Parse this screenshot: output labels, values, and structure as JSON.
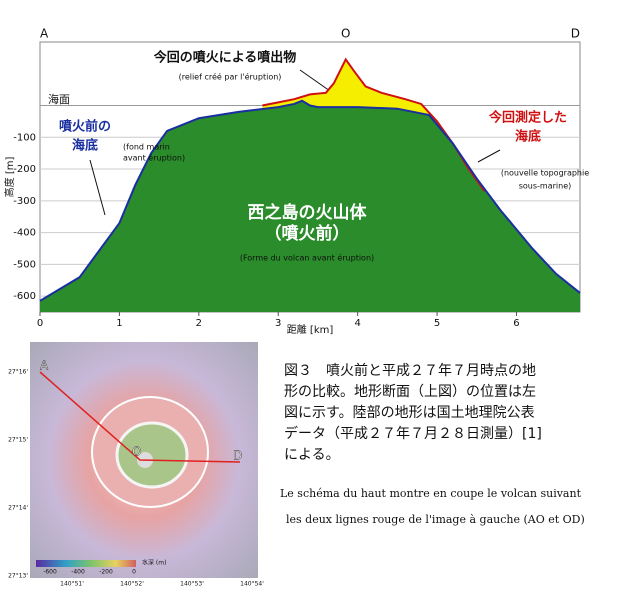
{
  "chart_data": {
    "type": "area",
    "x_label": "距離 [km]",
    "y_label": "高度 [m]",
    "xlim": [
      0,
      6.8
    ],
    "xticks": [
      0,
      1,
      2,
      3,
      4,
      5,
      6
    ],
    "ylim": [
      -650,
      200
    ],
    "yticks": [
      -100,
      -200,
      -300,
      -400,
      -500,
      -600
    ],
    "grid": true,
    "section_labels": [
      "A",
      "O",
      "D"
    ],
    "series": [
      {
        "name": "噴火前",
        "color": "#2a8c2a",
        "line_color": "#1a2fa0",
        "x": [
          0,
          0.5,
          1,
          1.2,
          1.4,
          1.6,
          2,
          2.5,
          3,
          3.2,
          3.3,
          3.4,
          3.5,
          4,
          4.5,
          4.9,
          5.2,
          5.5,
          5.8,
          6.2,
          6.5,
          6.8
        ],
        "values": [
          -615,
          -540,
          -370,
          -250,
          -150,
          -80,
          -40,
          -20,
          -5,
          5,
          15,
          0,
          -5,
          -5,
          -10,
          -30,
          -120,
          -230,
          -330,
          -450,
          -530,
          -590
        ]
      },
      {
        "name": "今回測定した海底",
        "color": "#f5ee00",
        "line_color": "#d01010",
        "x": [
          2.8,
          3.0,
          3.2,
          3.4,
          3.6,
          3.7,
          3.85,
          3.95,
          4.1,
          4.3,
          4.6,
          4.8,
          5.0,
          5.2,
          5.4,
          5.6
        ],
        "values": [
          0,
          10,
          20,
          35,
          40,
          70,
          145,
          110,
          60,
          40,
          20,
          5,
          -50,
          -120,
          -200,
          -270
        ]
      }
    ],
    "annotations": [
      "今回の噴火による噴出物",
      "(relief créé par l'éruption)",
      "海面",
      "噴火前の",
      "海底",
      "(fond marin",
      "avant éruption)",
      "今回測定した",
      "海底",
      "(nouvelle topographie",
      "sous-marine)",
      "西之島の火山体",
      "（噴火前）",
      "(Forme du volcan avant éruption)"
    ]
  },
  "figure": {
    "map_labels": [
      "A",
      "O",
      "D"
    ],
    "lat_labels": [
      "27°16'",
      "27°15'",
      "27°14'",
      "27°13'"
    ],
    "lon_labels": [
      "140°51'",
      "140°52'",
      "140°53'",
      "140°54'"
    ],
    "colorbar_ticks": [
      "-600",
      "-400",
      "-200",
      "0"
    ],
    "colorbar_title": "水深 (m)",
    "caption_ja": [
      "図３　噴火前と平成２７年７月時点の地",
      "形の比較。地形断面（上図）の位置は左",
      "図に示す。陸部の地形は国土地理院公表",
      "データ（平成２７年７月２８日測量）[1]",
      "による。"
    ],
    "caption_fr": [
      "Le schéma du haut montre en coupe le volcan suivant",
      "les deux lignes rouge de l'image à gauche (AO et OD)"
    ]
  }
}
